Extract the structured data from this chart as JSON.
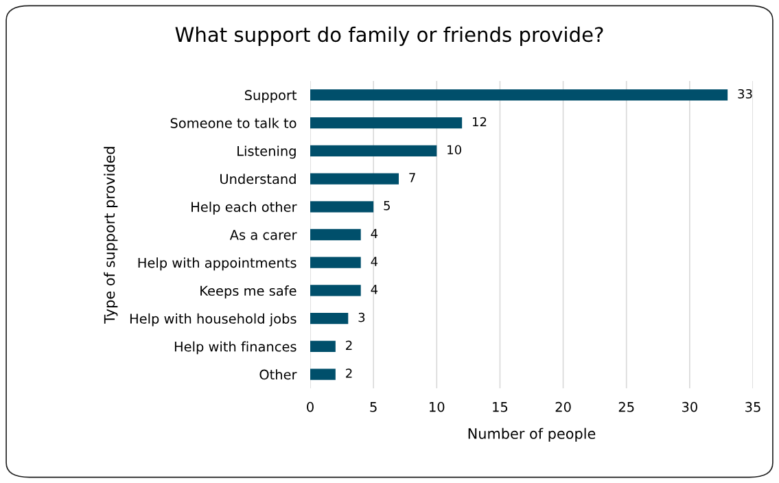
{
  "chart_data": {
    "type": "bar",
    "orientation": "horizontal",
    "title": "What support do family or friends provide?",
    "xlabel": "Number of people",
    "ylabel": "Type of support provided",
    "categories": [
      "Support",
      "Someone to talk to",
      "Listening",
      "Understand",
      "Help each other",
      "As a carer",
      "Help with appointments",
      "Keeps me safe",
      "Help with household jobs",
      "Help with finances",
      "Other"
    ],
    "values": [
      33,
      12,
      10,
      7,
      5,
      4,
      4,
      4,
      3,
      2,
      2
    ],
    "color": "#004f6b",
    "xlim": [
      0,
      35
    ],
    "xticks": [
      0,
      5,
      10,
      15,
      20,
      25,
      30,
      35
    ],
    "grid": "x",
    "data_labels": true
  }
}
